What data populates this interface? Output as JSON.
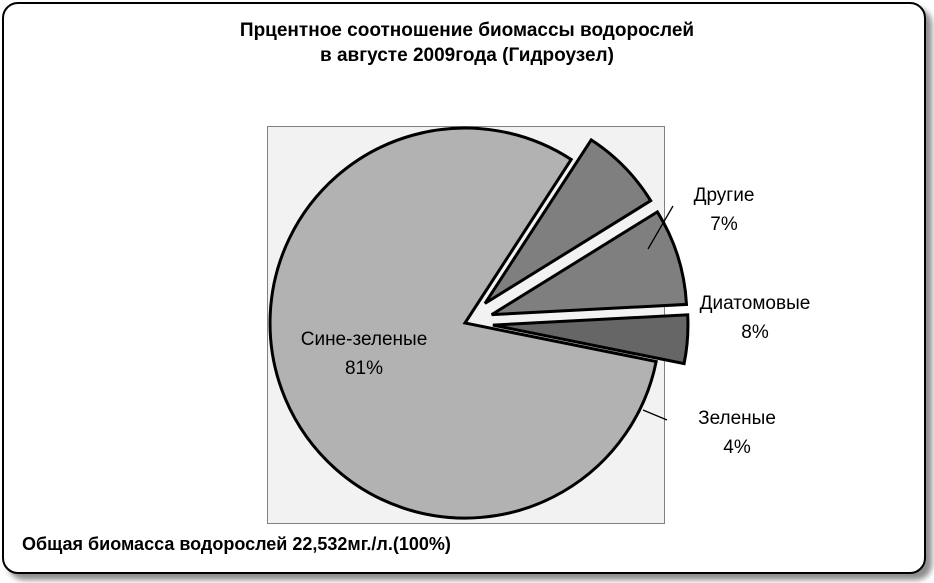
{
  "chart_data": {
    "type": "pie",
    "title_lines": [
      "Прцентное соотношение биомассы водорослей",
      "в августе  2009года (Гидроузел)"
    ],
    "slices": [
      {
        "name": "Сине-зеленые",
        "value": 81,
        "label": "81%",
        "color": "#b2b2b2"
      },
      {
        "name": "Другие",
        "value": 7,
        "label": "7%",
        "color": "#7f7f7f"
      },
      {
        "name": "Диатомовые",
        "value": 8,
        "label": "8%",
        "color": "#7f7f7f"
      },
      {
        "name": "Зеленые",
        "value": 4,
        "label": "4%",
        "color": "#666666"
      }
    ],
    "exploded": true,
    "legend": "none",
    "footer": "Общая биомасса  водорослей   22,532мг./л.(100%)"
  }
}
